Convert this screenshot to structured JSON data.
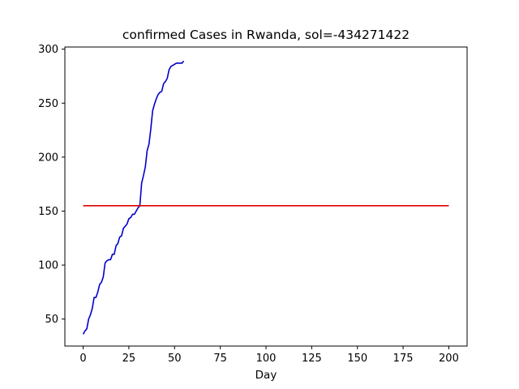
{
  "chart_data": {
    "type": "line",
    "title": "confirmed Cases in Rwanda, sol=-434271422",
    "xlabel": "Day",
    "ylabel": "",
    "xlim": [
      -10,
      210
    ],
    "ylim": [
      25,
      302
    ],
    "xticks": [
      0,
      25,
      50,
      75,
      100,
      125,
      150,
      175,
      200
    ],
    "yticks": [
      50,
      100,
      150,
      200,
      250,
      300
    ],
    "grid": false,
    "series": [
      {
        "color": "#0000cc",
        "x": [
          0,
          1,
          2,
          3,
          4,
          5,
          6,
          7,
          8,
          9,
          10,
          11,
          12,
          13,
          14,
          15,
          16,
          17,
          18,
          19,
          20,
          21,
          22,
          23,
          24,
          25,
          26,
          27,
          28,
          29,
          30,
          31,
          32,
          33,
          34,
          35,
          36,
          37,
          38,
          39,
          40,
          41,
          42,
          43,
          44,
          45,
          46,
          47,
          48,
          49,
          50,
          51,
          52,
          53,
          54,
          55
        ],
        "values": [
          36,
          39,
          41,
          50,
          54,
          60,
          70,
          70,
          75,
          82,
          84,
          89,
          102,
          104,
          105,
          105,
          110,
          110,
          118,
          120,
          126,
          127,
          134,
          136,
          138,
          143,
          144,
          147,
          147,
          150,
          153,
          155,
          176,
          183,
          191,
          206,
          212,
          226,
          243,
          249,
          254,
          258,
          260,
          261,
          268,
          270,
          273,
          281,
          284,
          285,
          286,
          287,
          287,
          287,
          287,
          289
        ]
      },
      {
        "color": "#dd0000",
        "x": [
          0,
          200
        ],
        "values": [
          155,
          155
        ]
      }
    ]
  }
}
